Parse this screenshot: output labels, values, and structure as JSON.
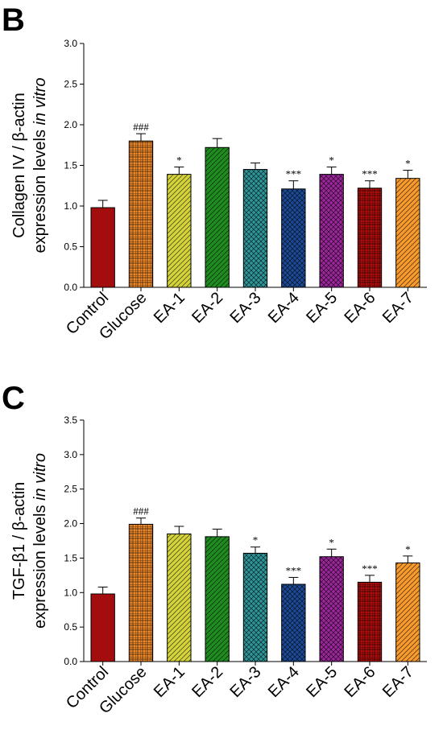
{
  "chart_data": [
    {
      "panel": "B",
      "type": "bar",
      "ylabel_line1": "Collagen IV / β-actin",
      "ylabel_line2_plain": "expression levels ",
      "ylabel_line2_italic": "in vitro",
      "ylim": [
        0,
        3.0
      ],
      "ticks": [
        "0.0",
        "0.5",
        "1.0",
        "1.5",
        "2.0",
        "2.5",
        "3.0"
      ],
      "categories": [
        "Control",
        "Glucose",
        "EA-1",
        "EA-2",
        "EA-3",
        "EA-4",
        "EA-5",
        "EA-6",
        "EA-7"
      ],
      "values": [
        0.98,
        1.8,
        1.39,
        1.72,
        1.45,
        1.21,
        1.39,
        1.22,
        1.34
      ],
      "errors": [
        0.09,
        0.09,
        0.09,
        0.11,
        0.08,
        0.1,
        0.09,
        0.09,
        0.1
      ],
      "significance": [
        "",
        "###",
        "*",
        "",
        "",
        "***",
        "*",
        "***",
        "*"
      ],
      "colors": [
        "#a30d0d",
        "#f08a2a",
        "#d5d33a",
        "#1f8c1f",
        "#2f9497",
        "#1c4a96",
        "#9b269b",
        "#b00d0d",
        "#f89a2c"
      ],
      "patterns": [
        "solid",
        "grid",
        "diag",
        "diag",
        "cross",
        "cross",
        "cross",
        "grid",
        "diag"
      ]
    },
    {
      "panel": "C",
      "type": "bar",
      "ylabel_line1": "TGF-β1 / β-actin",
      "ylabel_line2_plain": "expression levels ",
      "ylabel_line2_italic": "in vitro",
      "ylim": [
        0,
        3.5
      ],
      "ticks": [
        "0.0",
        "0.5",
        "1.0",
        "1.5",
        "2.0",
        "2.5",
        "3.0",
        "3.5"
      ],
      "categories": [
        "Control",
        "Glucose",
        "EA-1",
        "EA-2",
        "EA-3",
        "EA-4",
        "EA-5",
        "EA-6",
        "EA-7"
      ],
      "values": [
        0.98,
        1.99,
        1.85,
        1.81,
        1.57,
        1.12,
        1.52,
        1.15,
        1.43
      ],
      "errors": [
        0.1,
        0.09,
        0.11,
        0.11,
        0.09,
        0.1,
        0.11,
        0.1,
        0.1
      ],
      "significance": [
        "",
        "###",
        "",
        "",
        "*",
        "***",
        "*",
        "***",
        "*"
      ],
      "colors": [
        "#a30d0d",
        "#f08a2a",
        "#d5d33a",
        "#1f8c1f",
        "#2f9497",
        "#1c4a96",
        "#9b269b",
        "#b00d0d",
        "#f89a2c"
      ],
      "patterns": [
        "solid",
        "grid",
        "diag",
        "diag",
        "cross",
        "cross",
        "cross",
        "grid",
        "diag"
      ]
    }
  ]
}
